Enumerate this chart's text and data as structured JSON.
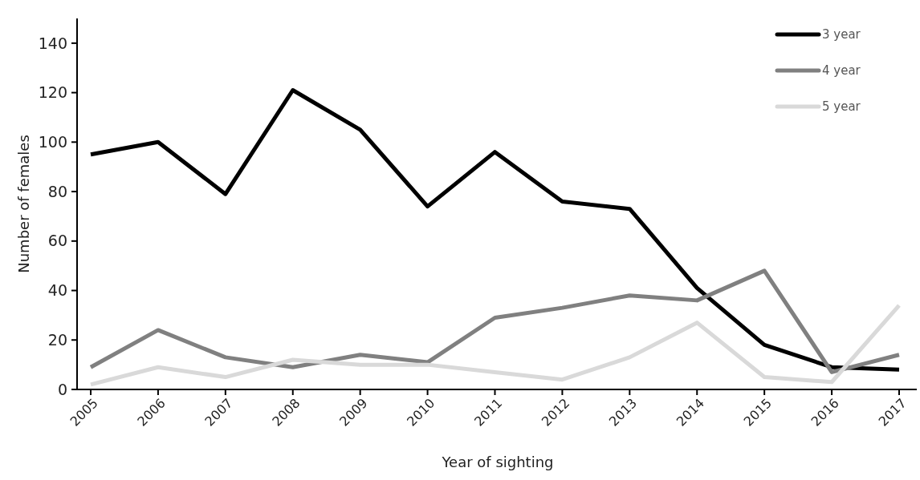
{
  "chart_data": {
    "type": "line",
    "xlabel": "Year of sighting",
    "ylabel": "Number of females",
    "categories": [
      "2005",
      "2006",
      "2007",
      "2008",
      "2009",
      "2010",
      "2011",
      "2012",
      "2013",
      "2014",
      "2015",
      "2016",
      "2017"
    ],
    "series": [
      {
        "name": "3 year",
        "color": "#000000",
        "values": [
          95,
          100,
          79,
          121,
          105,
          74,
          96,
          76,
          73,
          41,
          18,
          9,
          8
        ]
      },
      {
        "name": "4 year",
        "color": "#808080",
        "values": [
          9,
          24,
          13,
          9,
          14,
          11,
          29,
          33,
          38,
          36,
          48,
          7,
          14
        ]
      },
      {
        "name": "5 year",
        "color": "#d9d9d9",
        "values": [
          2,
          9,
          5,
          12,
          10,
          10,
          7,
          4,
          13,
          27,
          5,
          3,
          34
        ]
      }
    ],
    "ylim": [
      0,
      150
    ],
    "yticks": [
      0,
      20,
      40,
      60,
      80,
      100,
      120,
      140
    ],
    "grid": false,
    "legend": "top right",
    "marker": "none",
    "line_style": "solid"
  }
}
